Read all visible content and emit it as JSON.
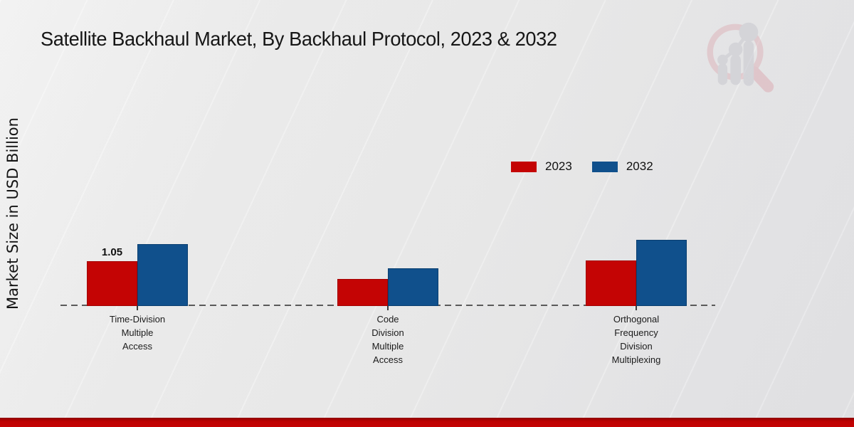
{
  "header": {
    "title": "Satellite Backhaul Market, By Backhaul Protocol, 2023 & 2032"
  },
  "axes": {
    "y_label": "Market Size in USD Billion"
  },
  "legend": {
    "items": [
      {
        "label": "2023",
        "color": "#c40404"
      },
      {
        "label": "2032",
        "color": "#10508c"
      }
    ]
  },
  "chart_data": {
    "type": "bar",
    "title": "Satellite Backhaul Market, By Backhaul Protocol, 2023 & 2032",
    "ylabel": "Market Size in USD Billion",
    "xlabel": "",
    "categories": [
      "Time-Division Multiple Access",
      "Code Division Multiple Access",
      "Orthogonal Frequency Division Multiplexing"
    ],
    "category_label_lines": [
      [
        "Time-Division",
        "Multiple",
        "Access"
      ],
      [
        "Code",
        "Division",
        "Multiple",
        "Access"
      ],
      [
        "Orthogonal",
        "Frequency",
        "Division",
        "Multiplexing"
      ]
    ],
    "series": [
      {
        "name": "2023",
        "color": "#c40404",
        "values": [
          1.05,
          0.63,
          1.07
        ]
      },
      {
        "name": "2032",
        "color": "#10508c",
        "values": [
          1.45,
          0.88,
          1.55
        ]
      }
    ],
    "data_labels": {
      "series": "2023",
      "category": "Time-Division Multiple Access",
      "text": "1.05"
    },
    "ylim": [
      0,
      2
    ],
    "grid": false,
    "axis_style": "dashed baseline only",
    "legend_position": "upper right"
  },
  "branding": {
    "watermark_icon": "magnifier-bar-chart-logo",
    "ring_color": "#deb6bc",
    "glyph_color": "#c7c7cf"
  },
  "footer": {
    "accent_color": "#bf0101"
  }
}
